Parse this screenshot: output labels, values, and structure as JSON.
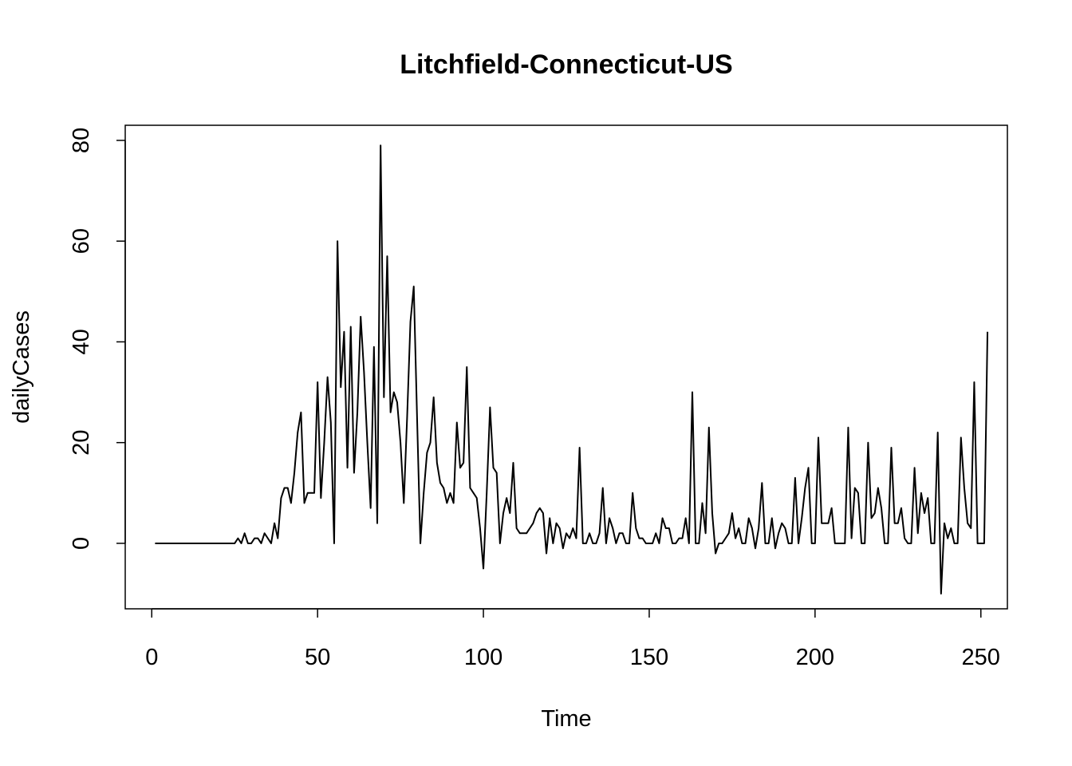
{
  "chart_data": {
    "type": "line",
    "title": "Litchfield-Connecticut-US",
    "xlabel": "Time",
    "ylabel": "dailyCases",
    "xlim": [
      -8,
      258
    ],
    "ylim": [
      -13,
      83
    ],
    "xticks": [
      0,
      50,
      100,
      150,
      200,
      250
    ],
    "yticks": [
      0,
      20,
      40,
      60,
      80
    ],
    "x_start": 1,
    "series": [
      {
        "values": [
          0,
          0,
          0,
          0,
          0,
          0,
          0,
          0,
          0,
          0,
          0,
          0,
          0,
          0,
          0,
          0,
          0,
          0,
          0,
          0,
          0,
          0,
          0,
          0,
          0,
          1,
          0,
          2,
          0,
          0,
          1,
          1,
          0,
          2,
          1,
          0,
          4,
          1,
          9,
          11,
          11,
          8,
          14,
          22,
          26,
          8,
          10,
          10,
          10,
          32,
          9,
          20,
          33,
          24,
          0,
          60,
          31,
          42,
          15,
          43,
          14,
          26,
          45,
          34,
          20,
          7,
          39,
          4,
          79,
          29,
          57,
          26,
          30,
          28,
          20,
          8,
          25,
          44,
          51,
          25,
          0,
          10,
          18,
          20,
          29,
          16,
          12,
          11,
          8,
          10,
          8,
          24,
          15,
          16,
          35,
          11,
          10,
          9,
          3,
          -5,
          10,
          27,
          15,
          14,
          0,
          6,
          9,
          6,
          16,
          3,
          2,
          2,
          2,
          3,
          4,
          6,
          7,
          6,
          -2,
          5,
          0,
          4,
          3,
          -1,
          2,
          1,
          3,
          1,
          19,
          0,
          0,
          2,
          0,
          0,
          2,
          11,
          0,
          5,
          3,
          0,
          2,
          2,
          0,
          0,
          10,
          3,
          1,
          1,
          0,
          0,
          0,
          2,
          0,
          5,
          3,
          3,
          0,
          0,
          1,
          1,
          5,
          0,
          30,
          0,
          0,
          8,
          2,
          23,
          6,
          -2,
          0,
          0,
          1,
          2,
          6,
          1,
          3,
          0,
          0,
          5,
          3,
          -1,
          3,
          12,
          0,
          0,
          5,
          -1,
          2,
          4,
          3,
          0,
          0,
          13,
          0,
          5,
          11,
          15,
          0,
          0,
          21,
          4,
          4,
          4,
          7,
          0,
          0,
          0,
          0,
          23,
          1,
          11,
          10,
          0,
          0,
          20,
          5,
          6,
          11,
          7,
          0,
          0,
          19,
          4,
          4,
          7,
          1,
          0,
          0,
          15,
          2,
          10,
          6,
          9,
          0,
          0,
          22,
          -10,
          4,
          1,
          3,
          0,
          0,
          21,
          11,
          4,
          3,
          32,
          0,
          0,
          0,
          42
        ]
      }
    ]
  }
}
